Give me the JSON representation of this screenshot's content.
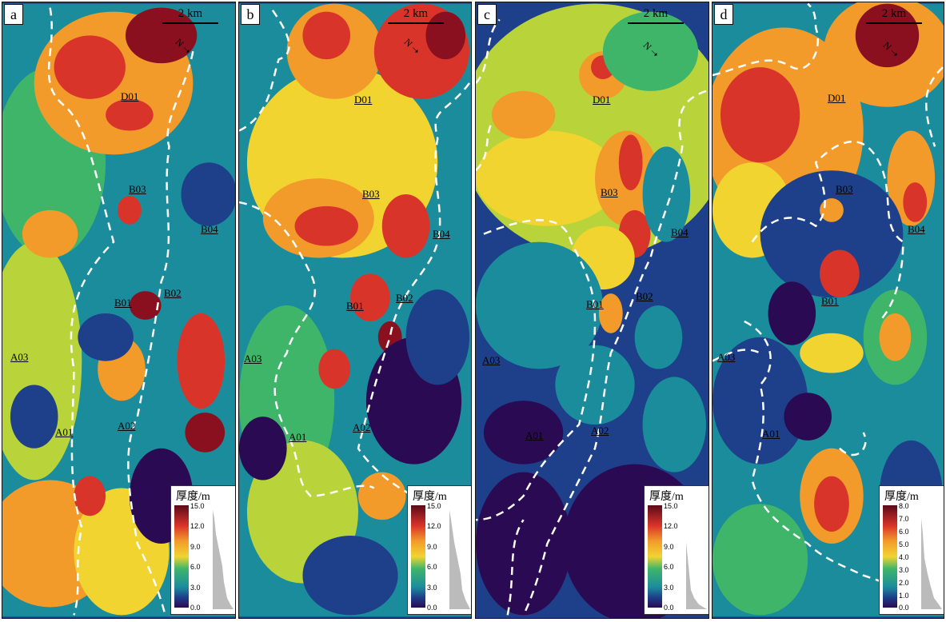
{
  "scale_label": "2 km",
  "north_label": "N",
  "legend_title": "厚度/m",
  "panels": [
    {
      "id": "a",
      "label": "a",
      "ticks": [
        "15.0",
        "12.0",
        "9.0",
        "6.0",
        "3.0",
        "0.0"
      ]
    },
    {
      "id": "b",
      "label": "b",
      "ticks": [
        "15.0",
        "12.0",
        "9.0",
        "6.0",
        "3.0",
        "0.0"
      ]
    },
    {
      "id": "c",
      "label": "c",
      "ticks": [
        "15.0",
        "12.0",
        "9.0",
        "6.0",
        "3.0",
        "0.0"
      ]
    },
    {
      "id": "d",
      "label": "d",
      "ticks": [
        "8.0",
        "7.0",
        "6.0",
        "5.0",
        "4.0",
        "3.0",
        "2.0",
        "1.0",
        "0.0"
      ]
    }
  ],
  "wells": {
    "D01": "D01",
    "B03": "B03",
    "B04": "B04",
    "B02": "B02",
    "B01": "B01",
    "A03": "A03",
    "A01": "A01",
    "A02": "A02"
  },
  "colors": {
    "deep": "#2a0a52",
    "navy": "#1e3f8a",
    "teal": "#1b8c9c",
    "green": "#3fb56a",
    "yellowgreen": "#b8d43a",
    "yellow": "#f2d431",
    "orange": "#f29b2b",
    "red": "#d9342a",
    "darkred": "#8a1020",
    "boundary": "#ffffff"
  }
}
